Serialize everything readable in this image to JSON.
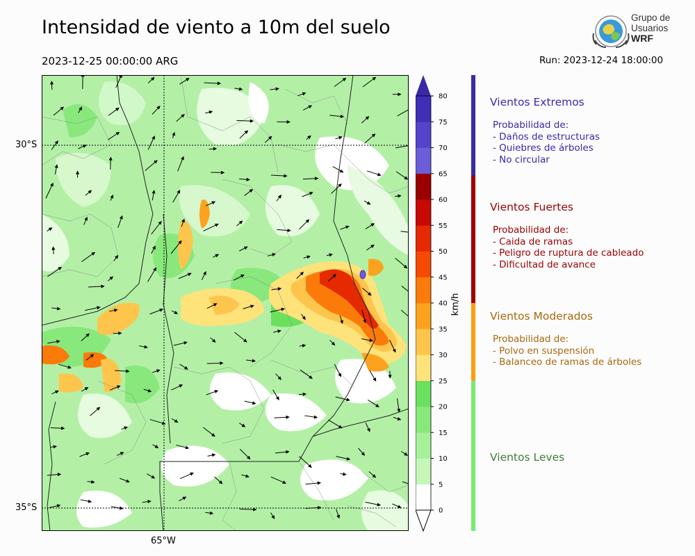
{
  "title": "Intensidad de viento a 10m del suelo",
  "valid_time": "2023-12-25 00:00:00 ARG",
  "run": "Run: 2023-12-24 18:00:00",
  "logo": {
    "line1": "Grupo de",
    "line2": "Usuarios",
    "line3": "WRF"
  },
  "map": {
    "lat_labels": [
      "30°S",
      "35°S"
    ],
    "lon_labels": [
      "65°W"
    ],
    "field": "wind speed 10m"
  },
  "colorbar": {
    "unit": "km/h",
    "ticks": [
      "0",
      "5",
      "10",
      "15",
      "20",
      "25",
      "30",
      "35",
      "40",
      "45",
      "50",
      "55",
      "60",
      "65",
      "70",
      "75",
      "80"
    ],
    "colors": [
      "#ffffff",
      "#c4f7b8",
      "#a6f09a",
      "#88e87c",
      "#6be05f",
      "#fee27a",
      "#fec54c",
      "#fda21e",
      "#fb7b0a",
      "#f64a04",
      "#e52a02",
      "#c80802",
      "#9a0000",
      "#6a5ed9",
      "#5444cc",
      "#3f2fb6"
    ],
    "extend_low": "#ffffff",
    "extend_high": "#3a28a8"
  },
  "legend": [
    {
      "title": "Vientos Extremos",
      "color": "#3a2aa8",
      "lines": [
        "Probabilidad de:",
        "- Daños de estructuras",
        "- Quiebres de árboles",
        "- No circular"
      ]
    },
    {
      "title": "Vientos Fuertes",
      "color": "#9a0202",
      "lines": [
        "Probabilidad de:",
        "- Caida de ramas",
        "- Peligro de ruptura de cableado",
        "- Dificultad de avance"
      ]
    },
    {
      "title": "Vientos Moderados",
      "color": "#a8680c",
      "lines": [
        "Probabilidad de:",
        "- Polvo en suspensión",
        "- Balanceo de ramas de árboles"
      ]
    },
    {
      "title": "Vientos Leves",
      "color": "#3f7d3a",
      "lines": []
    }
  ],
  "legend_bar_colors": [
    "#3a2aa8",
    "#a00000",
    "#fd9f10",
    "#7be872"
  ]
}
